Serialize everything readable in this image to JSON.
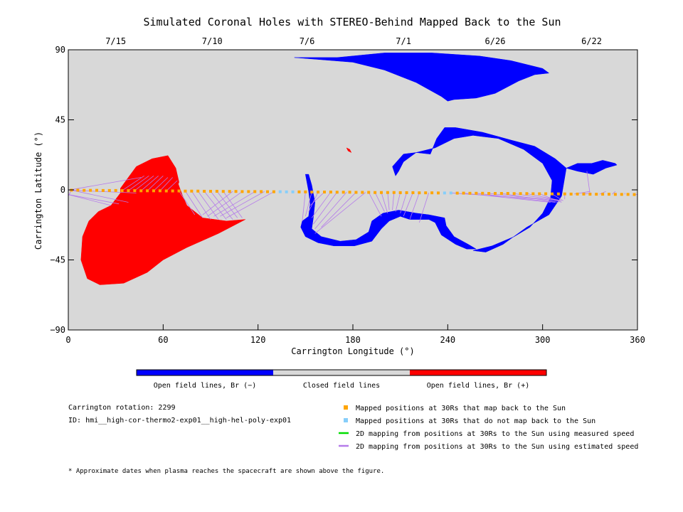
{
  "chart_data": {
    "type": "scatter",
    "title": "Simulated Coronal Holes with STEREO-Behind Mapped Back to the Sun",
    "xlabel": "Carrington Longitude (°)",
    "ylabel": "Carrington Latitude (°)",
    "xlim": [
      0,
      360
    ],
    "ylim": [
      -90,
      90
    ],
    "xticks": [
      "0",
      "60",
      "120",
      "180",
      "240",
      "300",
      "360"
    ],
    "yticks": [
      "90",
      "45",
      "0",
      "-45",
      "-90"
    ],
    "top_axis_dates": [
      {
        "label": "7/15",
        "x": 30
      },
      {
        "label": "7/10",
        "x": 91
      },
      {
        "label": "7/6",
        "x": 151
      },
      {
        "label": "7/1",
        "x": 212
      },
      {
        "label": "6/26",
        "x": 270
      },
      {
        "label": "6/22",
        "x": 331
      }
    ],
    "colorbar": {
      "colors": [
        "#0000ff",
        "#d8d8d8",
        "#ff0000"
      ],
      "labels": [
        "Open field lines, Br (−)",
        "Closed field lines",
        "Open field lines, Br (+)"
      ]
    },
    "background_color": "#d8d8d8",
    "negative_polarity_color": "#0000ff",
    "positive_polarity_color": "#ff0000",
    "regions": [
      {
        "polarity": "positive",
        "points": [
          [
            43,
            8
          ],
          [
            60,
            9
          ],
          [
            68,
            8
          ],
          [
            72,
            -3
          ],
          [
            75,
            -10
          ],
          [
            85,
            -18
          ],
          [
            100,
            -20
          ],
          [
            112,
            -19
          ],
          [
            95,
            -28
          ],
          [
            75,
            -37
          ],
          [
            60,
            -45
          ],
          [
            50,
            -53
          ],
          [
            35,
            -60
          ],
          [
            20,
            -61
          ],
          [
            12,
            -57
          ],
          [
            8,
            -45
          ],
          [
            9,
            -30
          ],
          [
            13,
            -20
          ],
          [
            19,
            -14
          ],
          [
            27,
            -10
          ],
          [
            33,
            -2
          ],
          [
            37,
            4
          ],
          [
            43,
            8
          ]
        ]
      },
      {
        "polarity": "positive",
        "points": [
          [
            38,
            8
          ],
          [
            43,
            15
          ],
          [
            53,
            20
          ],
          [
            63,
            22
          ],
          [
            68,
            14
          ],
          [
            70,
            5
          ],
          [
            66,
            -5
          ],
          [
            62,
            -14
          ],
          [
            55,
            -18
          ],
          [
            45,
            -18
          ],
          [
            38,
            -13
          ],
          [
            33,
            -5
          ],
          [
            33,
            1
          ],
          [
            38,
            8
          ]
        ]
      },
      {
        "polarity": "positive",
        "points": [
          [
            176,
            27
          ],
          [
            177,
            25
          ],
          [
            179,
            24
          ],
          [
            178,
            26
          ],
          [
            176,
            27
          ]
        ]
      },
      {
        "polarity": "negative",
        "points": [
          [
            143,
            85
          ],
          [
            170,
            85
          ],
          [
            200,
            88
          ],
          [
            230,
            88
          ],
          [
            260,
            86
          ],
          [
            280,
            83
          ],
          [
            300,
            78
          ],
          [
            304,
            75
          ],
          [
            295,
            74
          ],
          [
            285,
            70
          ],
          [
            270,
            62
          ],
          [
            258,
            59
          ],
          [
            244,
            58
          ],
          [
            240,
            57
          ],
          [
            236,
            60
          ],
          [
            220,
            69
          ],
          [
            200,
            77
          ],
          [
            180,
            82
          ],
          [
            143,
            85
          ]
        ]
      },
      {
        "polarity": "negative",
        "points": [
          [
            150,
            10
          ],
          [
            152,
            -1
          ],
          [
            153,
            -9
          ],
          [
            152,
            -17
          ],
          [
            148,
            -20
          ],
          [
            147,
            -24
          ],
          [
            150,
            -30
          ],
          [
            158,
            -34
          ],
          [
            168,
            -36
          ],
          [
            181,
            -36
          ],
          [
            192,
            -33
          ],
          [
            198,
            -25
          ],
          [
            203,
            -20
          ],
          [
            210,
            -17
          ],
          [
            216,
            -19
          ],
          [
            228,
            -19
          ],
          [
            232,
            -21
          ],
          [
            236,
            -29
          ],
          [
            245,
            -35
          ],
          [
            252,
            -38
          ],
          [
            258,
            -38
          ],
          [
            253,
            -35
          ],
          [
            244,
            -30
          ],
          [
            239,
            -23
          ],
          [
            238,
            -18
          ],
          [
            228,
            -16
          ],
          [
            220,
            -15
          ],
          [
            209,
            -13
          ],
          [
            199,
            -15
          ],
          [
            192,
            -20
          ],
          [
            190,
            -27
          ],
          [
            182,
            -32
          ],
          [
            172,
            -33
          ],
          [
            160,
            -30
          ],
          [
            154,
            -25
          ],
          [
            155,
            -18
          ],
          [
            156,
            -8
          ],
          [
            154,
            3
          ],
          [
            152,
            10
          ],
          [
            150,
            10
          ]
        ]
      },
      {
        "polarity": "negative",
        "points": [
          [
            238,
            40
          ],
          [
            245,
            40
          ],
          [
            262,
            37
          ],
          [
            280,
            32
          ],
          [
            295,
            28
          ],
          [
            308,
            20
          ],
          [
            315,
            14
          ],
          [
            322,
            12
          ],
          [
            332,
            10
          ],
          [
            340,
            14
          ],
          [
            347,
            16
          ],
          [
            346,
            17
          ],
          [
            338,
            19
          ],
          [
            331,
            17
          ],
          [
            322,
            17
          ],
          [
            315,
            14
          ],
          [
            312,
            -4
          ],
          [
            304,
            -16
          ],
          [
            290,
            -24
          ],
          [
            275,
            -35
          ],
          [
            264,
            -40
          ],
          [
            256,
            -39
          ],
          [
            268,
            -36
          ],
          [
            282,
            -30
          ],
          [
            292,
            -24
          ],
          [
            300,
            -15
          ],
          [
            305,
            -5
          ],
          [
            306,
            6
          ],
          [
            300,
            17
          ],
          [
            288,
            26
          ],
          [
            272,
            33
          ],
          [
            256,
            35
          ],
          [
            244,
            33
          ],
          [
            232,
            27
          ],
          [
            220,
            24
          ],
          [
            212,
            23
          ],
          [
            205,
            15
          ],
          [
            207,
            9
          ],
          [
            209,
            12
          ],
          [
            212,
            18
          ],
          [
            220,
            24
          ],
          [
            229,
            23
          ],
          [
            233,
            33
          ],
          [
            238,
            40
          ]
        ]
      }
    ],
    "series": [
      {
        "name": "Mapped positions at 30Rs that map back to the Sun",
        "color": "#ffa500",
        "marker": "square",
        "x": [
          2,
          6,
          10,
          14,
          18,
          22,
          26,
          30,
          34,
          38,
          42,
          46,
          50,
          54,
          58,
          62,
          66,
          70,
          74,
          78,
          82,
          86,
          90,
          94,
          98,
          102,
          106,
          110,
          114,
          118,
          122,
          126,
          130,
          146,
          150,
          154,
          158,
          162,
          166,
          170,
          174,
          178,
          182,
          186,
          190,
          194,
          198,
          202,
          206,
          210,
          214,
          218,
          222,
          226,
          230,
          234,
          246,
          250,
          254,
          258,
          262,
          266,
          270,
          274,
          278,
          282,
          286,
          290,
          294,
          298,
          302,
          306,
          310,
          314,
          318,
          322,
          326,
          330,
          334,
          338,
          342,
          346,
          350,
          354,
          358
        ],
        "y": [
          -0.2,
          -0.2,
          -0.3,
          -0.3,
          -0.3,
          -0.4,
          -0.4,
          -0.4,
          -0.5,
          -0.5,
          -0.5,
          -0.6,
          -0.6,
          -0.6,
          -0.6,
          -0.7,
          -0.7,
          -0.7,
          -0.8,
          -0.8,
          -0.8,
          -0.9,
          -0.9,
          -0.9,
          -1.0,
          -1.0,
          -1.0,
          -1.1,
          -1.1,
          -1.1,
          -1.1,
          -1.2,
          -1.2,
          -1.3,
          -1.3,
          -1.4,
          -1.4,
          -1.4,
          -1.4,
          -1.5,
          -1.5,
          -1.5,
          -1.6,
          -1.6,
          -1.6,
          -1.7,
          -1.7,
          -1.7,
          -1.7,
          -1.8,
          -1.8,
          -1.8,
          -1.9,
          -1.9,
          -1.9,
          -2.0,
          -2.1,
          -2.1,
          -2.2,
          -2.2,
          -2.2,
          -2.3,
          -2.3,
          -2.3,
          -2.3,
          -2.4,
          -2.4,
          -2.4,
          -2.5,
          -2.5,
          -2.5,
          -2.6,
          -2.6,
          -2.6,
          -2.7,
          -2.7,
          -2.7,
          -2.8,
          -2.8,
          -2.8,
          -2.8,
          -2.9,
          -2.9,
          -2.9,
          -3.0
        ]
      },
      {
        "name": "Mapped positions at 30Rs that do not map back to the Sun",
        "color": "#87cefa",
        "marker": "square",
        "x": [
          134,
          138,
          142,
          238,
          242
        ],
        "y": [
          -1.2,
          -1.3,
          -1.3,
          -2.0,
          -2.0
        ]
      },
      {
        "name": "2D mapping from positions at 30Rs to the Sun using measured speed",
        "color": "#00dd00",
        "x": [],
        "y": []
      },
      {
        "name": "2D mapping from positions at 30Rs to the Sun using estimated speed",
        "color": "#b57bea",
        "segments": [
          [
            0,
            -0.2,
            43,
            -2
          ],
          [
            0,
            -0.2,
            46,
            8
          ],
          [
            2,
            -0.2,
            38,
            -8
          ],
          [
            2,
            -0.2,
            0,
            -4
          ],
          [
            0,
            -3,
            32,
            -9
          ],
          [
            0,
            -3,
            27,
            -10
          ],
          [
            34,
            -0.5,
            48,
            9
          ],
          [
            38,
            -0.5,
            51,
            9
          ],
          [
            42,
            -0.5,
            54,
            9
          ],
          [
            46,
            -0.6,
            57,
            9
          ],
          [
            50,
            -0.6,
            60,
            9
          ],
          [
            54,
            -0.6,
            63,
            8
          ],
          [
            58,
            -0.6,
            66,
            8
          ],
          [
            62,
            -0.7,
            69,
            6
          ],
          [
            70,
            -0.7,
            80,
            -16
          ],
          [
            74,
            -0.8,
            85,
            -18
          ],
          [
            78,
            -0.8,
            90,
            -19
          ],
          [
            82,
            -0.8,
            95,
            -19
          ],
          [
            86,
            -0.9,
            100,
            -19
          ],
          [
            90,
            -0.9,
            104,
            -19
          ],
          [
            94,
            -0.9,
            107,
            -18
          ],
          [
            98,
            -1.0,
            110,
            -18
          ],
          [
            104,
            -1.0,
            85,
            -16
          ],
          [
            110,
            -1.1,
            88,
            -17
          ],
          [
            118,
            -1.1,
            92,
            -17
          ],
          [
            124,
            -1.1,
            96,
            -17
          ],
          [
            130,
            -1.2,
            100,
            -18
          ],
          [
            150,
            -1.3,
            148,
            -20
          ],
          [
            154,
            -1.4,
            150,
            -17
          ],
          [
            158,
            -1.4,
            152,
            -14
          ],
          [
            162,
            -1.4,
            153,
            -10
          ],
          [
            166,
            -1.4,
            154,
            -18
          ],
          [
            170,
            -1.5,
            155,
            -22
          ],
          [
            176,
            -1.5,
            156,
            -25
          ],
          [
            182,
            -1.5,
            160,
            -24
          ],
          [
            188,
            -1.6,
            156,
            -28
          ],
          [
            190,
            -1.6,
            198,
            -17
          ],
          [
            194,
            -1.7,
            200,
            -14
          ],
          [
            198,
            -1.7,
            202,
            -15
          ],
          [
            202,
            -1.7,
            203,
            -13
          ],
          [
            206,
            -1.7,
            205,
            -13
          ],
          [
            210,
            -1.8,
            207,
            -14
          ],
          [
            214,
            -1.8,
            210,
            -15
          ],
          [
            218,
            -1.8,
            212,
            -17
          ],
          [
            222,
            -1.9,
            216,
            -19
          ],
          [
            228,
            -1.9,
            222,
            -21
          ],
          [
            242,
            -2.0,
            300,
            -6
          ],
          [
            250,
            -2.1,
            305,
            -8
          ],
          [
            258,
            -2.2,
            308,
            -8
          ],
          [
            266,
            -2.3,
            310,
            -7
          ],
          [
            274,
            -2.3,
            310,
            -8
          ],
          [
            282,
            -2.4,
            311,
            -7
          ],
          [
            290,
            -2.4,
            312,
            -7
          ],
          [
            298,
            -2.5,
            312,
            -8
          ],
          [
            306,
            -2.6,
            313,
            -7
          ],
          [
            314,
            -2.6,
            314,
            -6
          ],
          [
            320,
            -2.7,
            330,
            -1
          ],
          [
            326,
            -2.7,
            331,
            -2
          ],
          [
            336,
            -2.8,
            340,
            -1
          ],
          [
            344,
            -2.8,
            346,
            -1
          ],
          [
            352,
            -2.9,
            352,
            -2
          ],
          [
            358,
            -3.0,
            360,
            -3
          ],
          [
            330,
            -2.8,
            328,
            12
          ]
        ]
      }
    ]
  },
  "info": {
    "rotation": "Carrington rotation: 2299",
    "model_id": "ID: hmi__high-cor-thermo2-exp01__high-hel-poly-exp01"
  },
  "footnote": "* Approximate dates when plasma reaches the spacecraft are shown above the figure."
}
